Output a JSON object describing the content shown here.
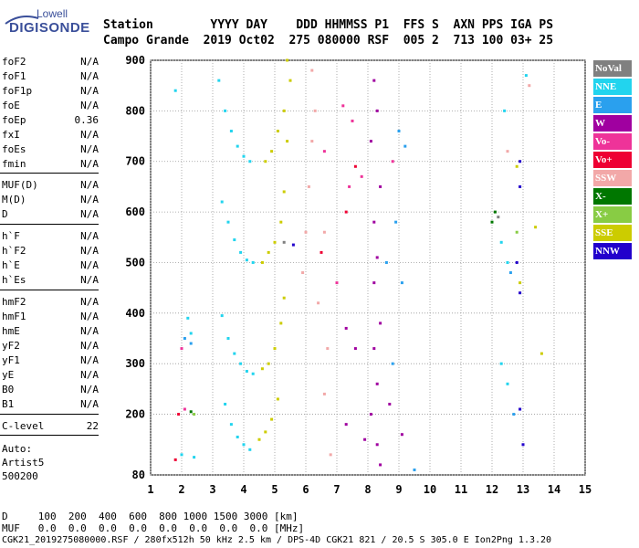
{
  "logo": {
    "line1": "Lowell",
    "line2": "DIGISONDE"
  },
  "header": {
    "row1": "Station        YYYY DAY    DDD HHMMSS P1  FFS S  AXN PPS IGA PS",
    "row2": "Campo Grande  2019 Oct02  275 080000 RSF  005 2  713 100 03+ 25"
  },
  "params": [
    {
      "label": "foF2",
      "value": "N/A"
    },
    {
      "label": "foF1",
      "value": "N/A"
    },
    {
      "label": "foF1p",
      "value": "N/A"
    },
    {
      "label": "foE",
      "value": "N/A"
    },
    {
      "label": "foEp",
      "value": "0.36"
    },
    {
      "label": "fxI",
      "value": "N/A"
    },
    {
      "label": "foEs",
      "value": "N/A"
    },
    {
      "label": "fmin",
      "value": "N/A"
    },
    {
      "label": "MUF(D)",
      "value": "N/A"
    },
    {
      "label": "M(D)",
      "value": "N/A"
    },
    {
      "label": "D",
      "value": "N/A"
    },
    {
      "label": "h`F",
      "value": "N/A"
    },
    {
      "label": "h`F2",
      "value": "N/A"
    },
    {
      "label": "h`E",
      "value": "N/A"
    },
    {
      "label": "h`Es",
      "value": "N/A"
    },
    {
      "label": "hmF2",
      "value": "N/A"
    },
    {
      "label": "hmF1",
      "value": "N/A"
    },
    {
      "label": "hmE",
      "value": "N/A"
    },
    {
      "label": "yF2",
      "value": "N/A"
    },
    {
      "label": "yF1",
      "value": "N/A"
    },
    {
      "label": "yE",
      "value": "N/A"
    },
    {
      "label": "B0",
      "value": "N/A"
    },
    {
      "label": "B1",
      "value": "N/A"
    },
    {
      "label": "C-level",
      "value": "22"
    }
  ],
  "auto": {
    "line1": "Auto:",
    "line2": "Artist5",
    "line3": "500200"
  },
  "legend": [
    {
      "label": "NoVal",
      "color": "#808080"
    },
    {
      "label": "NNE",
      "color": "#22d4ee"
    },
    {
      "label": "E",
      "color": "#2aa0ee"
    },
    {
      "label": "W",
      "color": "#a000a0"
    },
    {
      "label": "Vo-",
      "color": "#ee3399"
    },
    {
      "label": "Vo+",
      "color": "#ee0033"
    },
    {
      "label": "SSW",
      "color": "#f2a8a8"
    },
    {
      "label": "X-",
      "color": "#007700"
    },
    {
      "label": "X+",
      "color": "#88cc44"
    },
    {
      "label": "SSE",
      "color": "#cccc00"
    },
    {
      "label": "NNW",
      "color": "#2200cc"
    }
  ],
  "footer": {
    "d_row": "D     100  200  400  600  800 1000 1500 3000 [km]",
    "muf_row": "MUF   0.0  0.0  0.0  0.0  0.0  0.0  0.0  0.0 [MHz]",
    "status": "CGK21_2019275080000.RSF / 280fx512h 50 kHz 2.5 km / DPS-4D CGK21 821 / 20.5 S 305.0 E Ion2Png 1.3.20"
  },
  "chart_data": {
    "type": "scatter",
    "xlim": [
      1,
      15
    ],
    "ylim": [
      80,
      900
    ],
    "xticks": [
      "1",
      "2",
      "3",
      "4",
      "5",
      "6",
      "7",
      "8",
      "9",
      "10",
      "11",
      "12",
      "13",
      "14",
      "15"
    ],
    "yticks": [
      "80",
      "200",
      "300",
      "400",
      "500",
      "600",
      "700",
      "800",
      "900"
    ],
    "ytick_values": [
      80,
      200,
      300,
      400,
      500,
      600,
      700,
      800,
      900
    ],
    "grid": true,
    "series": [
      {
        "color": "#22d4ee",
        "points": [
          [
            3.2,
            860
          ],
          [
            3.4,
            800
          ],
          [
            3.6,
            760
          ],
          [
            3.8,
            730
          ],
          [
            4.0,
            710
          ],
          [
            4.2,
            700
          ],
          [
            3.3,
            620
          ],
          [
            3.5,
            580
          ],
          [
            3.7,
            545
          ],
          [
            3.9,
            520
          ],
          [
            4.1,
            505
          ],
          [
            4.3,
            500
          ],
          [
            3.3,
            395
          ],
          [
            3.5,
            350
          ],
          [
            3.7,
            320
          ],
          [
            3.9,
            300
          ],
          [
            4.1,
            285
          ],
          [
            4.3,
            280
          ],
          [
            3.4,
            220
          ],
          [
            3.6,
            180
          ],
          [
            3.8,
            155
          ],
          [
            4.0,
            140
          ],
          [
            4.2,
            130
          ],
          [
            1.8,
            840
          ],
          [
            2.2,
            390
          ],
          [
            2.3,
            360
          ],
          [
            2.0,
            120
          ],
          [
            2.4,
            115
          ],
          [
            12.3,
            540
          ],
          [
            12.5,
            500
          ],
          [
            12.3,
            300
          ],
          [
            12.5,
            260
          ],
          [
            12.4,
            800
          ],
          [
            13.1,
            870
          ]
        ]
      },
      {
        "color": "#2aa0ee",
        "points": [
          [
            2.1,
            350
          ],
          [
            2.3,
            340
          ],
          [
            8.6,
            500
          ],
          [
            8.8,
            300
          ],
          [
            9.0,
            760
          ],
          [
            9.2,
            730
          ],
          [
            8.9,
            580
          ],
          [
            9.1,
            460
          ],
          [
            9.5,
            90
          ],
          [
            12.6,
            480
          ],
          [
            12.7,
            200
          ]
        ]
      },
      {
        "color": "#cccc00",
        "points": [
          [
            5.4,
            900
          ],
          [
            5.5,
            860
          ],
          [
            5.3,
            800
          ],
          [
            5.1,
            760
          ],
          [
            4.9,
            720
          ],
          [
            4.7,
            700
          ],
          [
            5.4,
            740
          ],
          [
            5.3,
            640
          ],
          [
            5.2,
            580
          ],
          [
            5.0,
            540
          ],
          [
            4.8,
            520
          ],
          [
            4.6,
            500
          ],
          [
            5.3,
            430
          ],
          [
            5.2,
            380
          ],
          [
            5.0,
            330
          ],
          [
            4.8,
            300
          ],
          [
            4.6,
            290
          ],
          [
            5.1,
            230
          ],
          [
            4.9,
            190
          ],
          [
            4.7,
            165
          ],
          [
            4.5,
            150
          ],
          [
            12.8,
            690
          ],
          [
            13.4,
            570
          ],
          [
            12.9,
            460
          ],
          [
            13.6,
            320
          ]
        ]
      },
      {
        "color": "#f2a8a8",
        "points": [
          [
            6.2,
            880
          ],
          [
            6.3,
            800
          ],
          [
            6.2,
            740
          ],
          [
            6.1,
            650
          ],
          [
            6.0,
            560
          ],
          [
            5.9,
            480
          ],
          [
            6.4,
            420
          ],
          [
            6.6,
            560
          ],
          [
            6.7,
            330
          ],
          [
            6.6,
            240
          ],
          [
            6.8,
            120
          ],
          [
            12.5,
            720
          ],
          [
            13.2,
            850
          ]
        ]
      },
      {
        "color": "#a000a0",
        "points": [
          [
            8.2,
            860
          ],
          [
            8.3,
            800
          ],
          [
            8.1,
            740
          ],
          [
            8.4,
            650
          ],
          [
            8.2,
            580
          ],
          [
            8.3,
            510
          ],
          [
            8.2,
            460
          ],
          [
            8.4,
            380
          ],
          [
            8.2,
            330
          ],
          [
            8.3,
            260
          ],
          [
            8.1,
            200
          ],
          [
            8.3,
            140
          ],
          [
            8.4,
            100
          ],
          [
            7.3,
            370
          ],
          [
            7.6,
            330
          ],
          [
            7.3,
            180
          ],
          [
            7.9,
            150
          ],
          [
            8.7,
            220
          ],
          [
            9.1,
            160
          ]
        ]
      },
      {
        "color": "#ee3399",
        "points": [
          [
            7.2,
            810
          ],
          [
            7.5,
            780
          ],
          [
            8.8,
            700
          ],
          [
            7.8,
            670
          ],
          [
            7.4,
            650
          ],
          [
            2.0,
            330
          ],
          [
            2.1,
            210
          ],
          [
            6.6,
            720
          ],
          [
            7.0,
            460
          ]
        ]
      },
      {
        "color": "#ee0033",
        "points": [
          [
            6.5,
            520
          ],
          [
            7.6,
            690
          ],
          [
            7.3,
            600
          ],
          [
            1.9,
            200
          ],
          [
            1.8,
            110
          ]
        ]
      },
      {
        "color": "#2200cc",
        "points": [
          [
            5.6,
            535
          ],
          [
            12.9,
            700
          ],
          [
            12.9,
            650
          ],
          [
            12.8,
            500
          ],
          [
            12.9,
            440
          ],
          [
            12.9,
            210
          ],
          [
            13.0,
            140
          ]
        ]
      },
      {
        "color": "#007700",
        "points": [
          [
            2.3,
            205
          ],
          [
            12.1,
            600
          ],
          [
            12.0,
            580
          ]
        ]
      },
      {
        "color": "#88cc44",
        "points": [
          [
            2.4,
            200
          ],
          [
            12.8,
            560
          ]
        ]
      },
      {
        "color": "#808080",
        "points": [
          [
            5.3,
            540
          ],
          [
            12.2,
            590
          ]
        ]
      }
    ]
  }
}
